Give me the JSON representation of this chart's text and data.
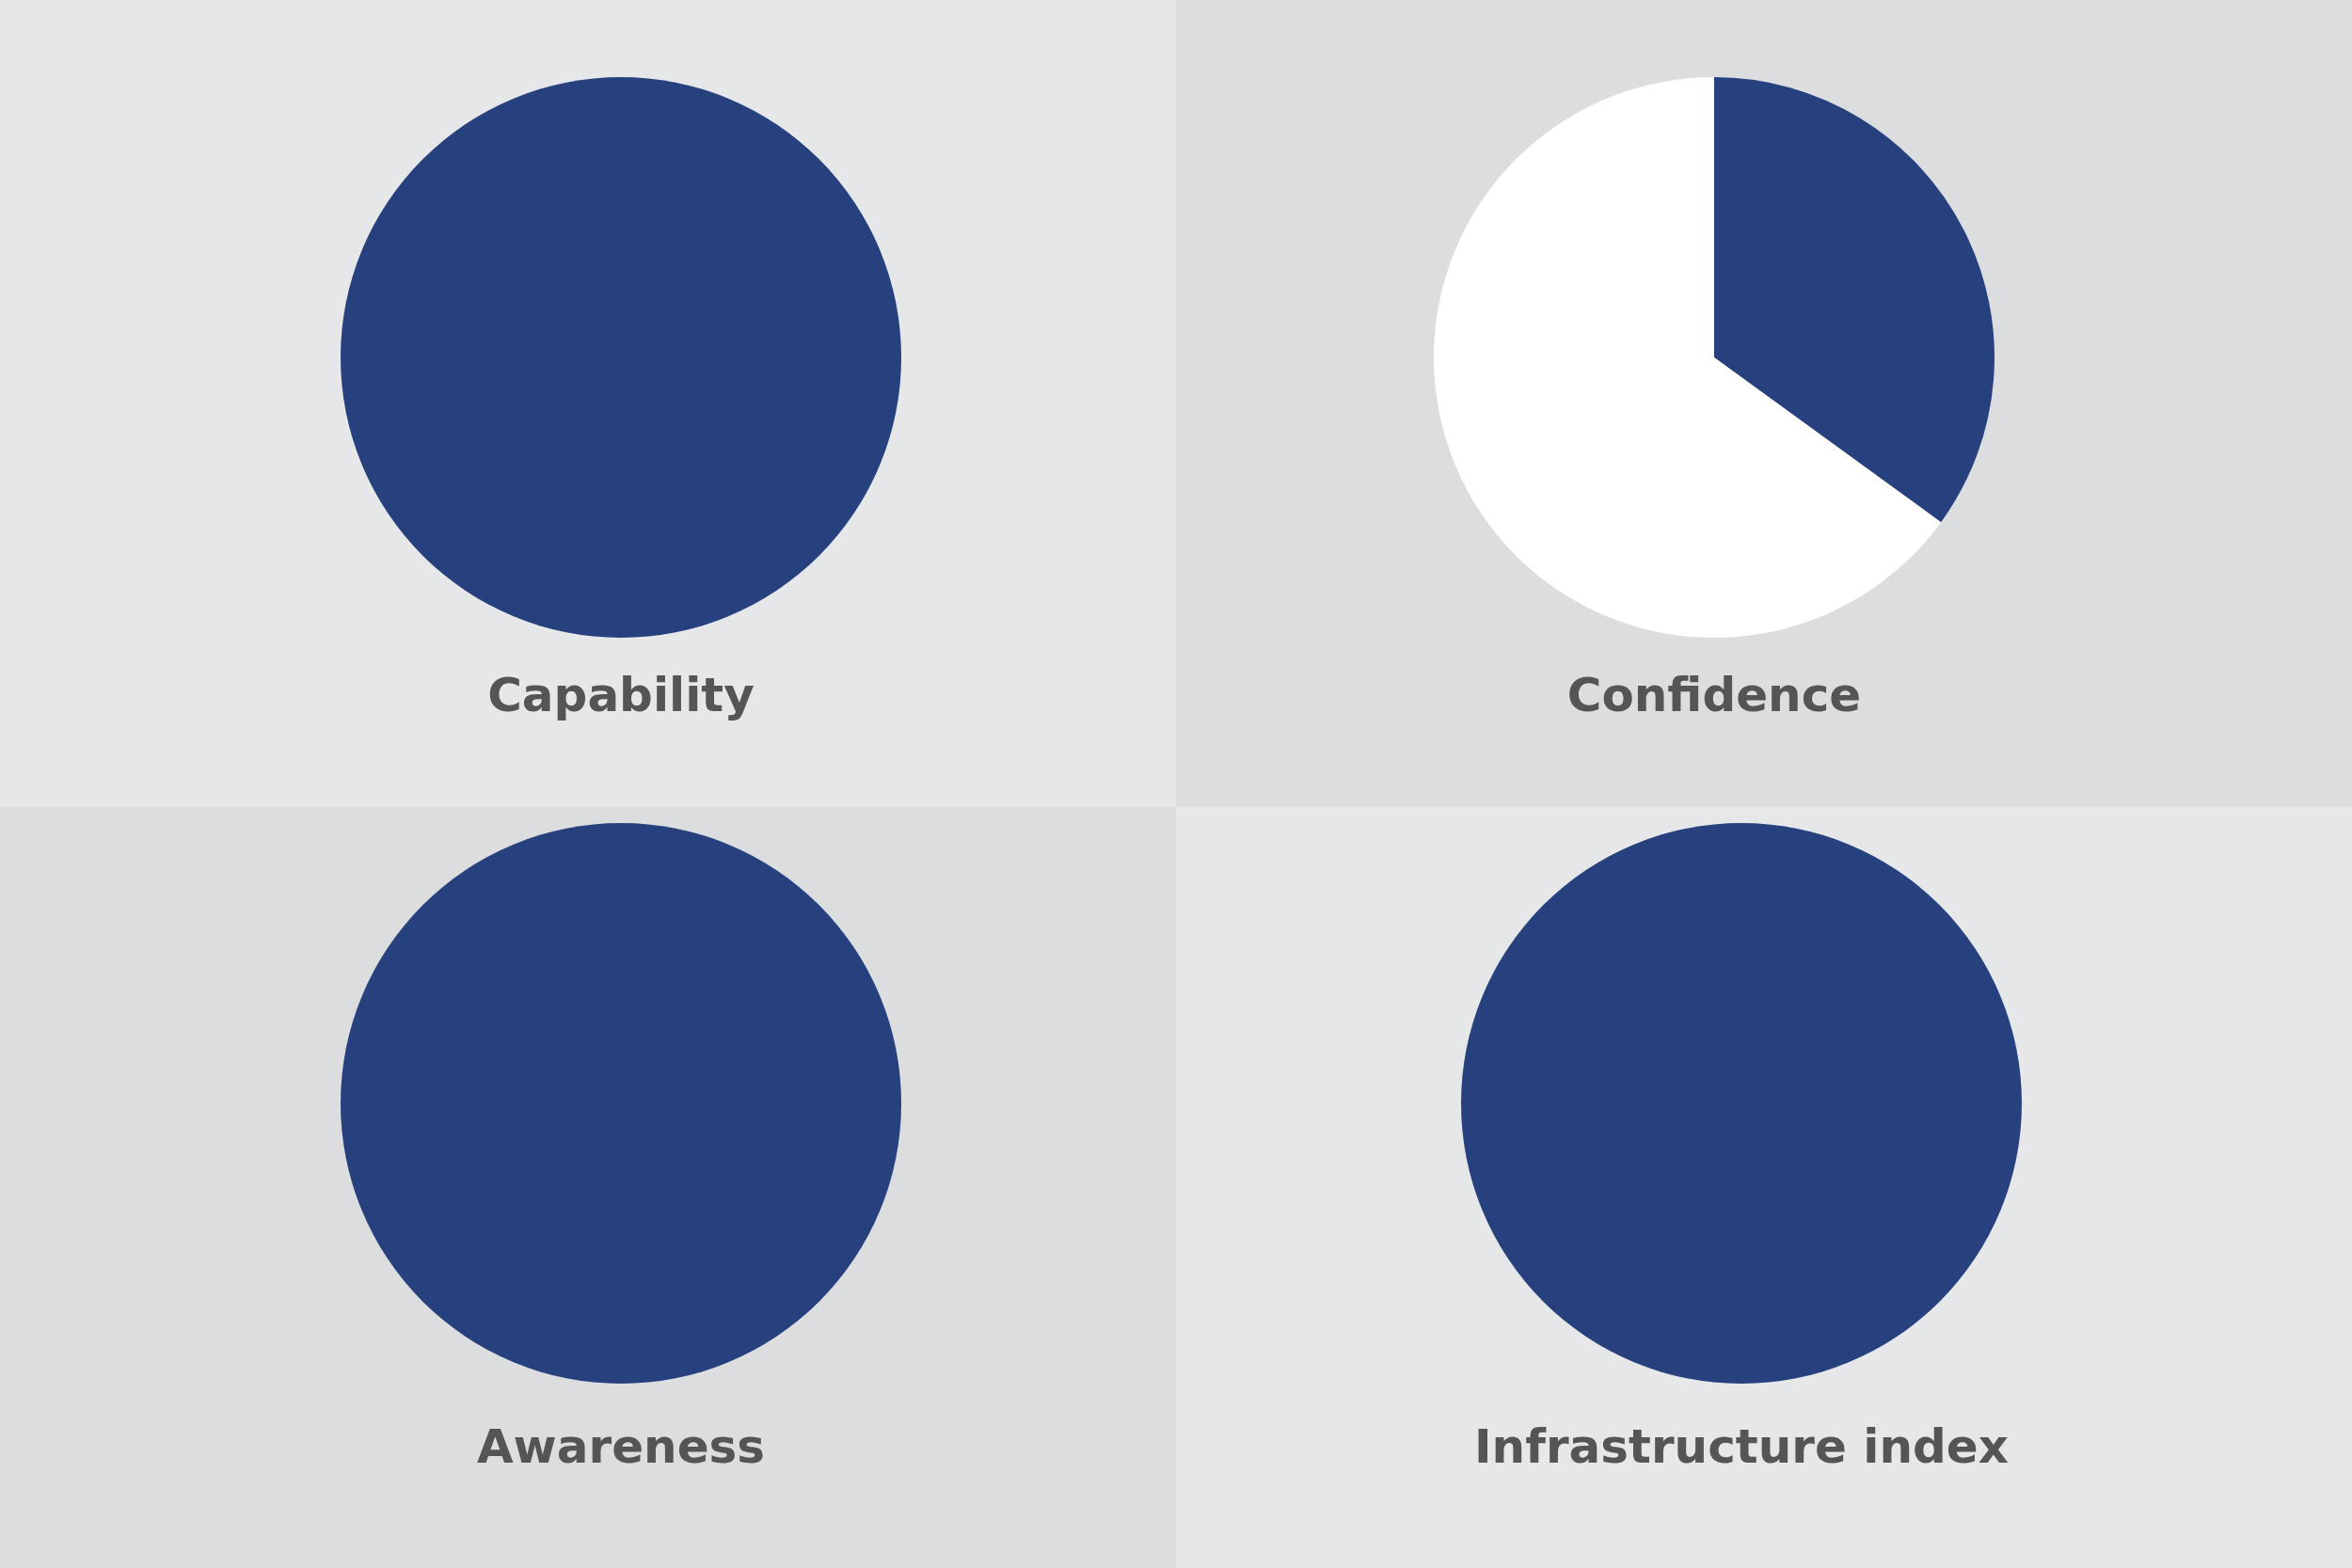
{
  "chart_data": [
    {
      "type": "pie",
      "title": "Capability",
      "categories": [
        null
      ],
      "values": [
        100
      ],
      "colors": [
        "#27417e"
      ]
    },
    {
      "type": "pie",
      "title": "Confidence",
      "categories": [
        null,
        null
      ],
      "values": [
        35,
        65
      ],
      "colors": [
        "#27417e",
        "#ffffff"
      ]
    },
    {
      "type": "pie",
      "title": "Awareness",
      "categories": [
        null
      ],
      "values": [
        100
      ],
      "colors": [
        "#27417e"
      ]
    },
    {
      "type": "pie",
      "title": "Infrastructure index",
      "categories": [
        null
      ],
      "values": [
        100
      ],
      "colors": [
        "#27417e"
      ]
    }
  ]
}
